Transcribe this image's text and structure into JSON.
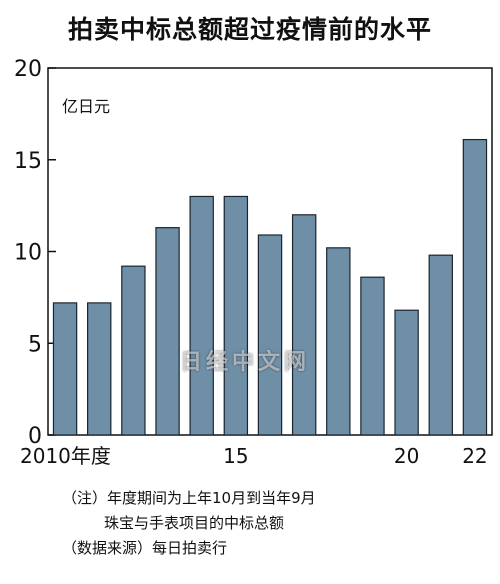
{
  "title": "拍卖中标总额超过疫情前的水平",
  "chart_data": {
    "type": "bar",
    "title": "拍卖中标总额超过疫情前的水平",
    "ylabel": "亿日元",
    "ylim": [
      0,
      20
    ],
    "yticks": [
      0,
      5,
      10,
      15,
      20
    ],
    "categories": [
      "2010",
      "2011",
      "2012",
      "2013",
      "2014",
      "2015",
      "2016",
      "2017",
      "2018",
      "2019",
      "2020",
      "2021",
      "2022"
    ],
    "x_tick_labels": [
      {
        "category": "2010",
        "label": "2010年度"
      },
      {
        "category": "2015",
        "label": "15"
      },
      {
        "category": "2020",
        "label": "20"
      },
      {
        "category": "2022",
        "label": "22"
      }
    ],
    "values": [
      7.2,
      7.2,
      9.2,
      11.3,
      13.0,
      13.0,
      10.9,
      12.0,
      10.2,
      8.6,
      6.8,
      9.8,
      16.1
    ],
    "bar_color": "#6f8fa7",
    "grid": false
  },
  "notes": [
    "（注）年度期间为上年10月到当年9月",
    "珠宝与手表项目的中标总额",
    "（数据来源）每日拍卖行"
  ],
  "watermark": "日经中文网"
}
